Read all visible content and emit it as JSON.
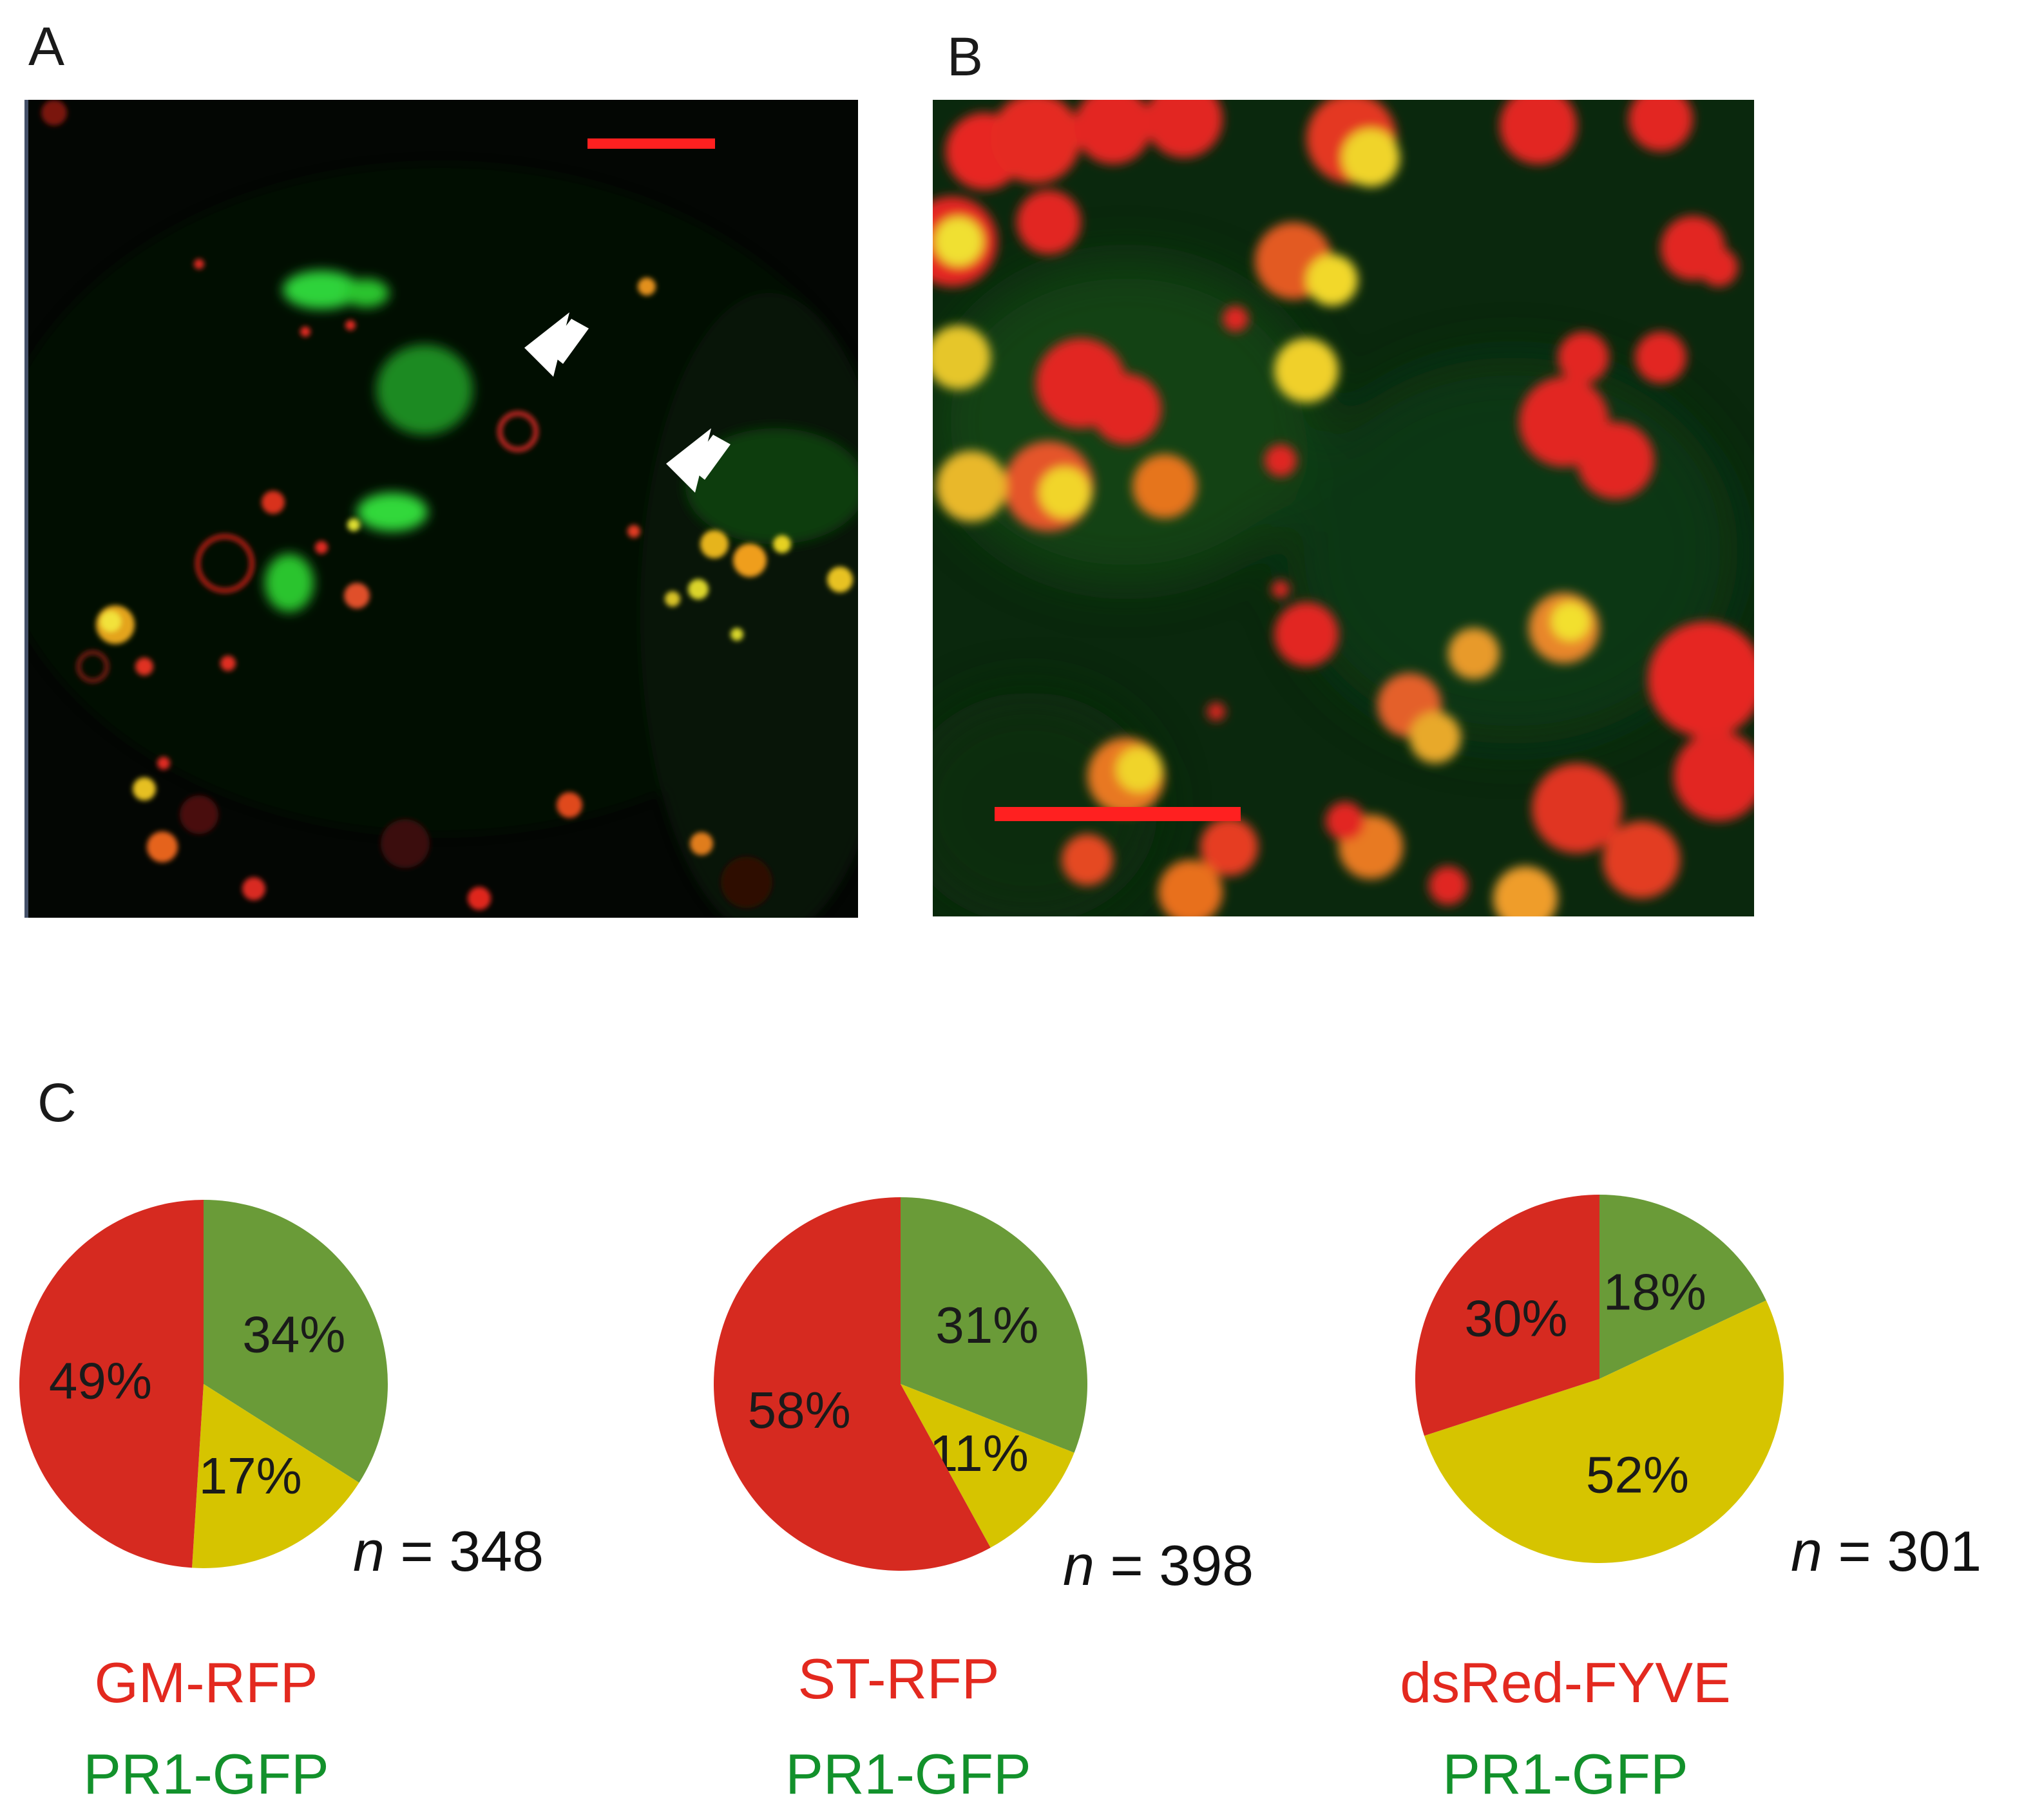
{
  "panels": {
    "a": {
      "label": "A"
    },
    "b": {
      "label": "B"
    },
    "c": {
      "label": "C"
    }
  },
  "colors": {
    "red": "#d62a20",
    "green": "#6a9b38",
    "yellow": "#d6c400",
    "label_red": "#e3291f",
    "label_green": "#12912b"
  },
  "chart_data": [
    {
      "type": "pie",
      "categories": [
        "red",
        "green",
        "yellow"
      ],
      "values": [
        49,
        34,
        17
      ],
      "labels": [
        "49%",
        "34%",
        "17%"
      ],
      "n_symbol": "n",
      "n_value": "= 348",
      "red_construct": "GM-RFP",
      "green_construct": "PR1-GFP"
    },
    {
      "type": "pie",
      "categories": [
        "red",
        "green",
        "yellow"
      ],
      "values": [
        58,
        31,
        11
      ],
      "labels": [
        "58%",
        "31%",
        "11%"
      ],
      "n_symbol": "n",
      "n_value": "= 398",
      "red_construct": "ST-RFP",
      "green_construct": "PR1-GFP"
    },
    {
      "type": "pie",
      "categories": [
        "red",
        "green",
        "yellow"
      ],
      "values": [
        30,
        18,
        52
      ],
      "labels": [
        "30%",
        "18%",
        "52%"
      ],
      "n_symbol": "n",
      "n_value": "= 301",
      "red_construct": "dsRed-FYVE",
      "green_construct": "PR1-GFP"
    }
  ]
}
